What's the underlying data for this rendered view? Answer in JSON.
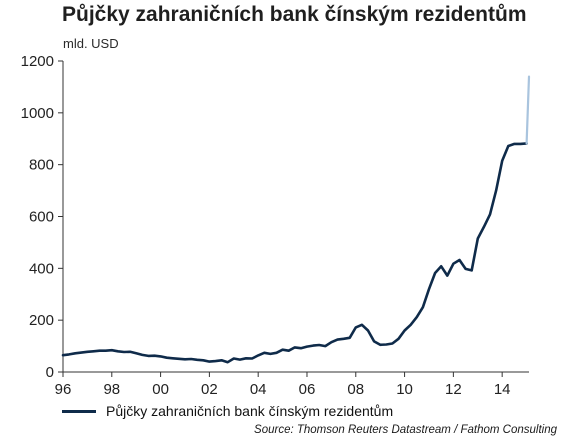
{
  "chart_data": {
    "type": "line",
    "title": "Půjčky zahraničních bank čínským rezidentům",
    "subtitle": "mld. USD",
    "ylim": [
      0,
      1200
    ],
    "yticks": [
      0,
      200,
      400,
      600,
      800,
      1000,
      1200
    ],
    "xlim": [
      1996,
      2015.1
    ],
    "xticks": [
      {
        "value": 1996,
        "label": "96"
      },
      {
        "value": 1998,
        "label": "98"
      },
      {
        "value": 2000,
        "label": "00"
      },
      {
        "value": 2002,
        "label": "02"
      },
      {
        "value": 2004,
        "label": "04"
      },
      {
        "value": 2006,
        "label": "06"
      },
      {
        "value": 2008,
        "label": "08"
      },
      {
        "value": 2010,
        "label": "10"
      },
      {
        "value": 2012,
        "label": "12"
      },
      {
        "value": 2014,
        "label": "14"
      }
    ],
    "grid": false,
    "legend_position": "bottom-left",
    "series": [
      {
        "name": "Půjčky zahraničních bank čínským rezidentům",
        "color": "#0f2b4a",
        "x": [
          1996.0,
          1996.25,
          1996.5,
          1996.75,
          1997.0,
          1997.25,
          1997.5,
          1997.75,
          1998.0,
          1998.25,
          1998.5,
          1998.75,
          1999.0,
          1999.25,
          1999.5,
          1999.75,
          2000.0,
          2000.25,
          2000.5,
          2000.75,
          2001.0,
          2001.25,
          2001.5,
          2001.75,
          2002.0,
          2002.25,
          2002.5,
          2002.75,
          2003.0,
          2003.25,
          2003.5,
          2003.75,
          2004.0,
          2004.25,
          2004.5,
          2004.75,
          2005.0,
          2005.25,
          2005.5,
          2005.75,
          2006.0,
          2006.25,
          2006.5,
          2006.75,
          2007.0,
          2007.25,
          2007.5,
          2007.75,
          2008.0,
          2008.25,
          2008.5,
          2008.75,
          2009.0,
          2009.25,
          2009.5,
          2009.75,
          2010.0,
          2010.25,
          2010.5,
          2010.75,
          2011.0,
          2011.25,
          2011.5,
          2011.75,
          2012.0,
          2012.25,
          2012.5,
          2012.75,
          2013.0,
          2013.25,
          2013.5,
          2013.75,
          2014.0,
          2014.25,
          2014.5,
          2014.75,
          2015.0
        ],
        "y": [
          65,
          68,
          72,
          75,
          78,
          80,
          82,
          82,
          84,
          80,
          77,
          78,
          72,
          66,
          62,
          63,
          60,
          55,
          53,
          51,
          49,
          50,
          47,
          45,
          40,
          42,
          45,
          38,
          52,
          48,
          53,
          52,
          64,
          74,
          70,
          74,
          86,
          82,
          95,
          92,
          98,
          102,
          104,
          100,
          115,
          125,
          128,
          132,
          172,
          182,
          160,
          118,
          105,
          106,
          110,
          128,
          160,
          182,
          212,
          250,
          320,
          382,
          408,
          372,
          418,
          432,
          398,
          392,
          515,
          560,
          608,
          700,
          815,
          872,
          880,
          880,
          882
        ]
      },
      {
        "name": "",
        "color": "#a9c4de",
        "x": [
          2015.0,
          2015.1
        ],
        "y": [
          882,
          1140
        ]
      }
    ],
    "source": "Source: Thomson Reuters Datastream / Fathom Consulting"
  }
}
